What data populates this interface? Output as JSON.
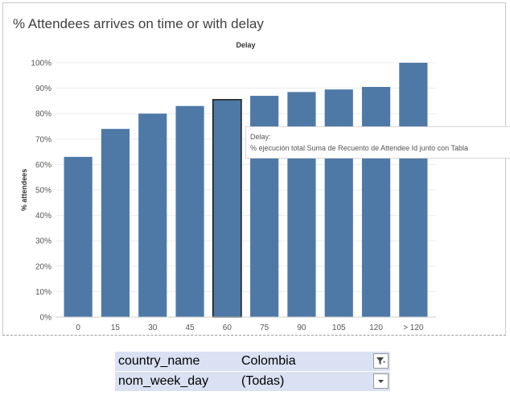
{
  "chart_data": {
    "type": "bar",
    "title": "% Attendees arrives on time or with delay",
    "column_header": "Delay",
    "xlabel": "",
    "ylabel": "% attendees",
    "categories": [
      "0",
      "15",
      "30",
      "45",
      "60",
      "75",
      "90",
      "105",
      "120",
      "> 120"
    ],
    "values": [
      63,
      74,
      80,
      83,
      85.5,
      87,
      88.5,
      89.5,
      90.5,
      100
    ],
    "ylim": [
      0,
      100
    ],
    "yticks": [
      "0%",
      "10%",
      "20%",
      "30%",
      "40%",
      "50%",
      "60%",
      "70%",
      "80%",
      "90%",
      "100%"
    ],
    "bar_color": "#4e79a7",
    "highlighted_category": "60",
    "grid": true
  },
  "tooltip": {
    "line1": "Delay:",
    "line2": "% ejecución total Suma de Recuento de Attendee Id junto con Tabla"
  },
  "filters": [
    {
      "name": "country_name",
      "value": "Colombia",
      "icon": "filter-active-icon"
    },
    {
      "name": "nom_week_day",
      "value": "(Todas)",
      "icon": "dropdown-arrow-icon"
    }
  ]
}
